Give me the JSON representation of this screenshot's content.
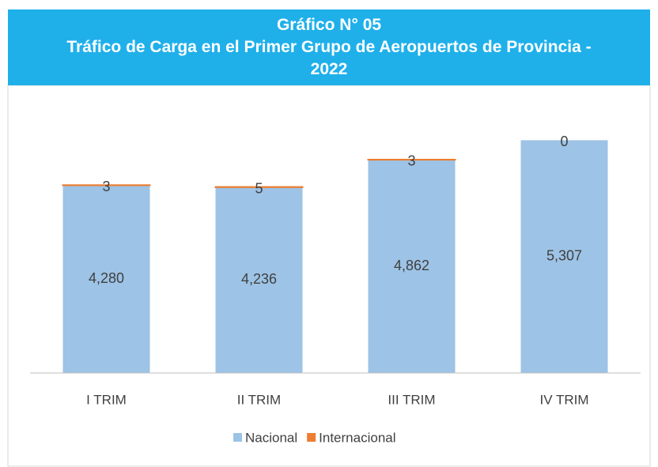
{
  "chart_data": {
    "type": "stacked_bar",
    "title": "Gráfico N° 05",
    "subtitle": "Tráfico de Carga en el Primer Grupo de Aeropuertos de Provincia - 2022",
    "categories": [
      "I TRIM",
      "II TRIM",
      "III TRIM",
      "IV TRIM"
    ],
    "series": [
      {
        "name": "Nacional",
        "color": "#9dc3e6",
        "values": [
          4280,
          4236,
          4862,
          5307
        ],
        "value_labels": [
          "4,280",
          "4,236",
          "4,862",
          "5,307"
        ]
      },
      {
        "name": "Internacional",
        "color": "#ed7d31",
        "values": [
          3,
          5,
          3,
          0
        ]
      }
    ],
    "ylim": [
      0,
      6000
    ],
    "legend": "bottom"
  }
}
